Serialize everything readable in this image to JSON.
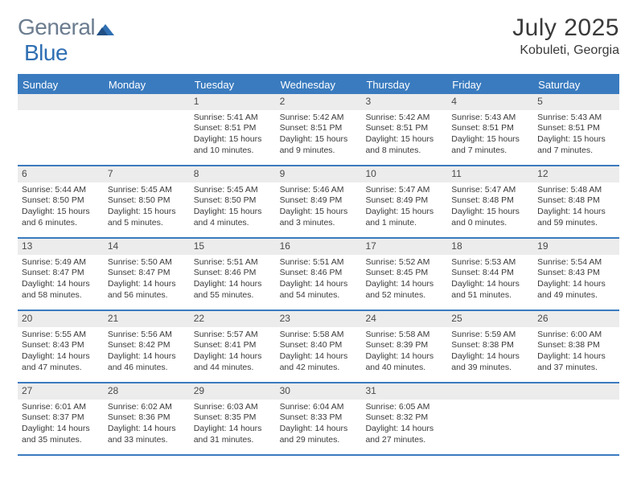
{
  "brand": {
    "text1": "General",
    "text2": "Blue"
  },
  "title": "July 2025",
  "location": "Kobuleti, Georgia",
  "colors": {
    "accent": "#3a7bbf",
    "dayHeaderBg": "#ececec",
    "text": "#3a3a3a",
    "logoGray": "#6b7c8f",
    "logoBlue": "#2f6fb3"
  },
  "daysOfWeek": [
    "Sunday",
    "Monday",
    "Tuesday",
    "Wednesday",
    "Thursday",
    "Friday",
    "Saturday"
  ],
  "weeks": [
    [
      {
        "empty": true
      },
      {
        "empty": true
      },
      {
        "n": "1",
        "sunrise": "5:41 AM",
        "sunset": "8:51 PM",
        "daylight": "15 hours and 10 minutes."
      },
      {
        "n": "2",
        "sunrise": "5:42 AM",
        "sunset": "8:51 PM",
        "daylight": "15 hours and 9 minutes."
      },
      {
        "n": "3",
        "sunrise": "5:42 AM",
        "sunset": "8:51 PM",
        "daylight": "15 hours and 8 minutes."
      },
      {
        "n": "4",
        "sunrise": "5:43 AM",
        "sunset": "8:51 PM",
        "daylight": "15 hours and 7 minutes."
      },
      {
        "n": "5",
        "sunrise": "5:43 AM",
        "sunset": "8:51 PM",
        "daylight": "15 hours and 7 minutes."
      }
    ],
    [
      {
        "n": "6",
        "sunrise": "5:44 AM",
        "sunset": "8:50 PM",
        "daylight": "15 hours and 6 minutes."
      },
      {
        "n": "7",
        "sunrise": "5:45 AM",
        "sunset": "8:50 PM",
        "daylight": "15 hours and 5 minutes."
      },
      {
        "n": "8",
        "sunrise": "5:45 AM",
        "sunset": "8:50 PM",
        "daylight": "15 hours and 4 minutes."
      },
      {
        "n": "9",
        "sunrise": "5:46 AM",
        "sunset": "8:49 PM",
        "daylight": "15 hours and 3 minutes."
      },
      {
        "n": "10",
        "sunrise": "5:47 AM",
        "sunset": "8:49 PM",
        "daylight": "15 hours and 1 minute."
      },
      {
        "n": "11",
        "sunrise": "5:47 AM",
        "sunset": "8:48 PM",
        "daylight": "15 hours and 0 minutes."
      },
      {
        "n": "12",
        "sunrise": "5:48 AM",
        "sunset": "8:48 PM",
        "daylight": "14 hours and 59 minutes."
      }
    ],
    [
      {
        "n": "13",
        "sunrise": "5:49 AM",
        "sunset": "8:47 PM",
        "daylight": "14 hours and 58 minutes."
      },
      {
        "n": "14",
        "sunrise": "5:50 AM",
        "sunset": "8:47 PM",
        "daylight": "14 hours and 56 minutes."
      },
      {
        "n": "15",
        "sunrise": "5:51 AM",
        "sunset": "8:46 PM",
        "daylight": "14 hours and 55 minutes."
      },
      {
        "n": "16",
        "sunrise": "5:51 AM",
        "sunset": "8:46 PM",
        "daylight": "14 hours and 54 minutes."
      },
      {
        "n": "17",
        "sunrise": "5:52 AM",
        "sunset": "8:45 PM",
        "daylight": "14 hours and 52 minutes."
      },
      {
        "n": "18",
        "sunrise": "5:53 AM",
        "sunset": "8:44 PM",
        "daylight": "14 hours and 51 minutes."
      },
      {
        "n": "19",
        "sunrise": "5:54 AM",
        "sunset": "8:43 PM",
        "daylight": "14 hours and 49 minutes."
      }
    ],
    [
      {
        "n": "20",
        "sunrise": "5:55 AM",
        "sunset": "8:43 PM",
        "daylight": "14 hours and 47 minutes."
      },
      {
        "n": "21",
        "sunrise": "5:56 AM",
        "sunset": "8:42 PM",
        "daylight": "14 hours and 46 minutes."
      },
      {
        "n": "22",
        "sunrise": "5:57 AM",
        "sunset": "8:41 PM",
        "daylight": "14 hours and 44 minutes."
      },
      {
        "n": "23",
        "sunrise": "5:58 AM",
        "sunset": "8:40 PM",
        "daylight": "14 hours and 42 minutes."
      },
      {
        "n": "24",
        "sunrise": "5:58 AM",
        "sunset": "8:39 PM",
        "daylight": "14 hours and 40 minutes."
      },
      {
        "n": "25",
        "sunrise": "5:59 AM",
        "sunset": "8:38 PM",
        "daylight": "14 hours and 39 minutes."
      },
      {
        "n": "26",
        "sunrise": "6:00 AM",
        "sunset": "8:38 PM",
        "daylight": "14 hours and 37 minutes."
      }
    ],
    [
      {
        "n": "27",
        "sunrise": "6:01 AM",
        "sunset": "8:37 PM",
        "daylight": "14 hours and 35 minutes."
      },
      {
        "n": "28",
        "sunrise": "6:02 AM",
        "sunset": "8:36 PM",
        "daylight": "14 hours and 33 minutes."
      },
      {
        "n": "29",
        "sunrise": "6:03 AM",
        "sunset": "8:35 PM",
        "daylight": "14 hours and 31 minutes."
      },
      {
        "n": "30",
        "sunrise": "6:04 AM",
        "sunset": "8:33 PM",
        "daylight": "14 hours and 29 minutes."
      },
      {
        "n": "31",
        "sunrise": "6:05 AM",
        "sunset": "8:32 PM",
        "daylight": "14 hours and 27 minutes."
      },
      {
        "empty": true
      },
      {
        "empty": true
      }
    ]
  ],
  "labels": {
    "sunrise": "Sunrise:",
    "sunset": "Sunset:",
    "daylight": "Daylight:"
  }
}
